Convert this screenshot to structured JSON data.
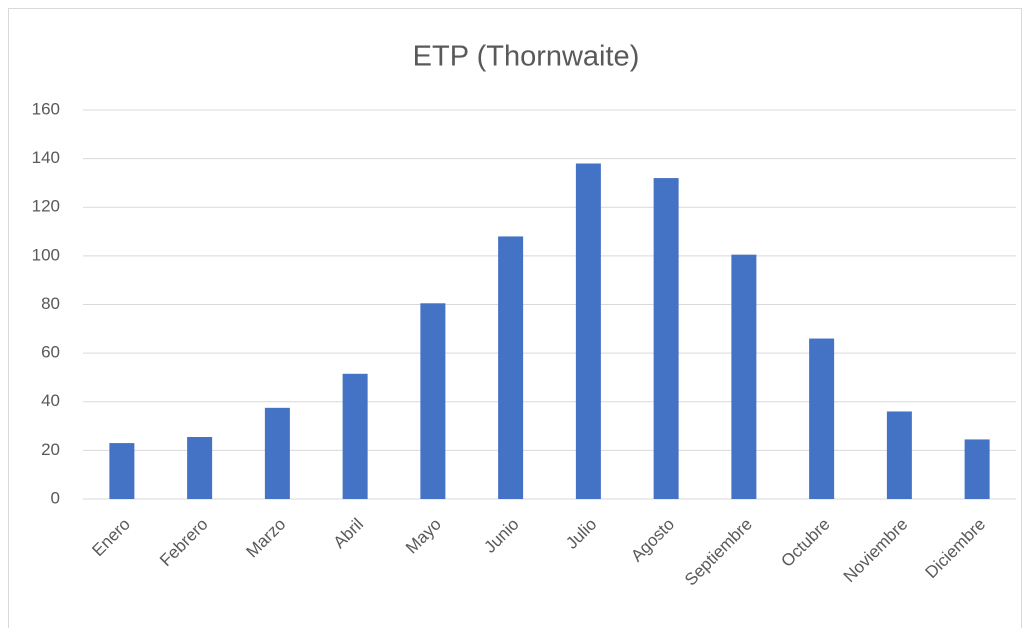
{
  "chart_data": {
    "type": "bar",
    "title": "ETP (Thornwaite)",
    "categories": [
      "Enero",
      "Febrero",
      "Marzo",
      "Abril",
      "Mayo",
      "Junio",
      "Julio",
      "Agosto",
      "Septiembre",
      "Octubre",
      "Noviembre",
      "Diciembre"
    ],
    "values": [
      23,
      25.5,
      37.5,
      51.5,
      80.5,
      108,
      138,
      132,
      100.5,
      66,
      36,
      24.5
    ],
    "color": "#4472c4",
    "ylim": [
      0,
      160
    ],
    "yticks": [
      0,
      20,
      40,
      60,
      80,
      100,
      120,
      140,
      160
    ],
    "grid": true
  }
}
